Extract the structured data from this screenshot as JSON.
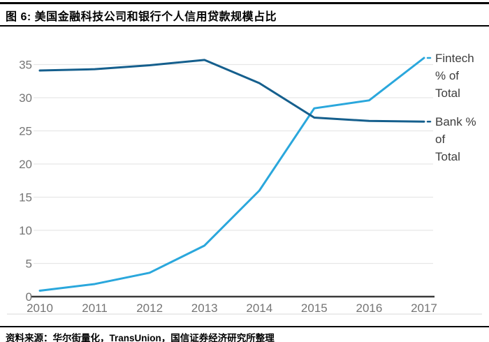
{
  "header": {
    "title": "图 6: 美国金融科技公司和银行个人信用贷款规模占比"
  },
  "footer": {
    "source": "资料来源：华尔街量化，TransUnion，国信证券经济研究所整理"
  },
  "colors": {
    "fintech": "#2aa7dc",
    "bank": "#155f8d",
    "grid": "#e7e7e7",
    "axis_line": "#3a3a3a",
    "tick_label": "#757575",
    "series_label": "#3d3d3d",
    "chart_border": "#d9d9d9",
    "rule": "#000000"
  },
  "chart_data": {
    "type": "line",
    "title": "美国金融科技公司和银行个人信用贷款规模占比",
    "categories": [
      "2010",
      "2011",
      "2012",
      "2013",
      "2014",
      "2015",
      "2016",
      "2017"
    ],
    "series": [
      {
        "id": "fintech",
        "name": "Fintech % of Total",
        "label_lines": [
          "Fintech",
          "% of",
          "Total"
        ],
        "color": "#2aa7dc",
        "values": [
          0.9,
          1.9,
          3.6,
          7.7,
          16.0,
          28.4,
          29.6,
          36.0
        ]
      },
      {
        "id": "bank",
        "name": "Bank % of Total",
        "label_lines": [
          "Bank %",
          "of",
          "Total"
        ],
        "color": "#155f8d",
        "values": [
          34.1,
          34.3,
          34.9,
          35.7,
          32.2,
          27.0,
          26.5,
          26.4
        ]
      }
    ],
    "yticks": [
      0,
      5,
      10,
      15,
      20,
      25,
      30,
      35
    ],
    "ylim": [
      0,
      37
    ],
    "xlabel": "",
    "ylabel": "",
    "grid": true,
    "legend_position": "right-end-labels"
  }
}
